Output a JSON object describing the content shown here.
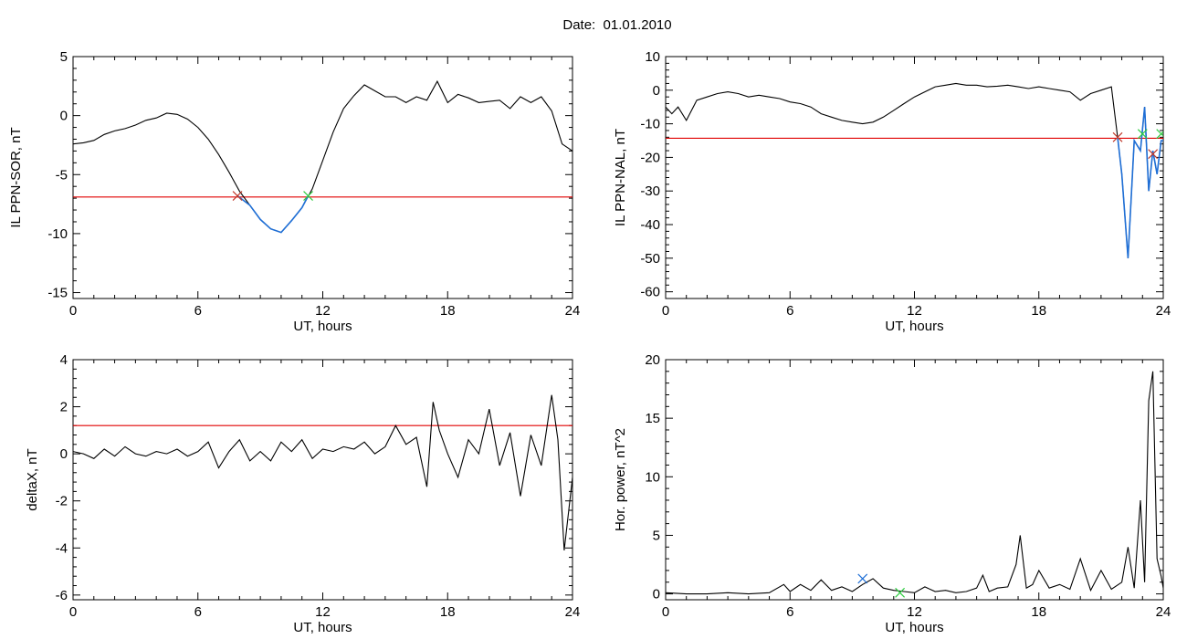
{
  "page_title": "Date:  01.01.2010",
  "colors": {
    "data": "#000000",
    "threshold": "#e00000",
    "segment": "#1f6fd6",
    "start_marker": "#c0392b",
    "end_marker": "#2ecc40",
    "peak_marker": "#1f6fd6"
  },
  "chart_data": [
    {
      "type": "line",
      "id": "sor",
      "title": "",
      "xlabel": "UT, hours",
      "ylabel": "IL PPN-SOR, nT",
      "xlim": [
        0,
        24
      ],
      "ylim": [
        -15.5,
        5
      ],
      "xticks": [
        0,
        6,
        12,
        18,
        24
      ],
      "yticks": [
        5,
        0,
        -5,
        -10,
        -15
      ],
      "grid": false,
      "threshold": -6.9,
      "series": [
        {
          "role": "data",
          "x": [
            0,
            0.5,
            1,
            1.5,
            2,
            2.5,
            3,
            3.5,
            4,
            4.5,
            5,
            5.5,
            6,
            6.5,
            7,
            7.5,
            8,
            8.5,
            9,
            9.5,
            10,
            10.5,
            11,
            11.5,
            12,
            12.5,
            13,
            13.5,
            14,
            14.5,
            15,
            15.5,
            16,
            16.5,
            17,
            17.5,
            18,
            18.5,
            19,
            19.5,
            20,
            20.5,
            21,
            21.5,
            22,
            22.5,
            23,
            23.5,
            24
          ],
          "y": [
            -2.4,
            -2.3,
            -2.1,
            -1.6,
            -1.3,
            -1.1,
            -0.8,
            -0.4,
            -0.2,
            0.2,
            0.1,
            -0.3,
            -1.0,
            -2.0,
            -3.3,
            -4.8,
            -6.4,
            -7.6,
            -8.8,
            -9.6,
            -9.9,
            -8.9,
            -7.8,
            -6.2,
            -3.8,
            -1.4,
            0.6,
            1.7,
            2.6,
            2.1,
            1.6,
            1.6,
            1.1,
            1.6,
            1.3,
            2.9,
            1.1,
            1.8,
            1.5,
            1.1,
            1.2,
            1.3,
            0.6,
            1.6,
            1.1,
            1.6,
            0.4,
            -2.4,
            -3.0
          ]
        },
        {
          "role": "segment",
          "x": [
            7.9,
            8.5,
            9,
            9.5,
            10,
            10.5,
            11,
            11.3
          ],
          "y": [
            -6.8,
            -7.6,
            -8.8,
            -9.6,
            -9.9,
            -8.9,
            -7.8,
            -6.8
          ]
        }
      ],
      "markers": [
        {
          "x": 7.9,
          "y": -6.8,
          "role": "start"
        },
        {
          "x": 11.3,
          "y": -6.8,
          "role": "end"
        }
      ]
    },
    {
      "type": "line",
      "id": "nal",
      "title": "",
      "xlabel": "UT, hours",
      "ylabel": "IL PPN-NAL, nT",
      "xlim": [
        0,
        24
      ],
      "ylim": [
        -62,
        10
      ],
      "xticks": [
        0,
        6,
        12,
        18,
        24
      ],
      "yticks": [
        10,
        0,
        -10,
        -20,
        -30,
        -40,
        -50,
        -60
      ],
      "grid": false,
      "threshold": -14.3,
      "series": [
        {
          "role": "data",
          "x": [
            0,
            0.3,
            0.6,
            1,
            1.5,
            2,
            2.5,
            3,
            3.5,
            4,
            4.5,
            5,
            5.5,
            6,
            6.5,
            7,
            7.5,
            8,
            8.5,
            9,
            9.5,
            10,
            10.5,
            11,
            11.5,
            12,
            12.5,
            13,
            13.5,
            14,
            14.5,
            15,
            15.5,
            16,
            16.5,
            17,
            17.5,
            18,
            18.5,
            19,
            19.5,
            20,
            20.5,
            21,
            21.5,
            21.8,
            22,
            22.3,
            22.6,
            22.9,
            23.1,
            23.3,
            23.5,
            23.7,
            23.9,
            24
          ],
          "y": [
            -5,
            -7,
            -5,
            -9,
            -3,
            -2,
            -1,
            -0.5,
            -1,
            -2,
            -1.5,
            -2,
            -2.5,
            -3.5,
            -4,
            -5,
            -7,
            -8,
            -9,
            -9.5,
            -10,
            -9.5,
            -8,
            -6,
            -4,
            -2,
            -0.5,
            1,
            1.5,
            2,
            1.5,
            1.5,
            1,
            1.2,
            1.5,
            1,
            0.5,
            1,
            0.5,
            0,
            -0.5,
            -3,
            -1,
            0,
            1,
            -14,
            -25,
            -50,
            -15,
            -18,
            -5,
            -30,
            -18,
            -25,
            -15,
            -15
          ]
        },
        {
          "role": "segment",
          "x": [
            21.8,
            22,
            22.3,
            22.6,
            22.9,
            23.1,
            23.3,
            23.5,
            23.7,
            23.9,
            24
          ],
          "y": [
            -14,
            -25,
            -50,
            -15,
            -18,
            -5,
            -30,
            -18,
            -25,
            -15,
            -15
          ]
        }
      ],
      "markers": [
        {
          "x": 21.8,
          "y": -14,
          "role": "start"
        },
        {
          "x": 23.0,
          "y": -13,
          "role": "end"
        },
        {
          "x": 23.5,
          "y": -19,
          "role": "start"
        },
        {
          "x": 23.9,
          "y": -13,
          "role": "end"
        }
      ]
    },
    {
      "type": "line",
      "id": "deltax",
      "title": "",
      "xlabel": "UT, hours",
      "ylabel": "deltaX, nT",
      "xlim": [
        0,
        24
      ],
      "ylim": [
        -6.2,
        4
      ],
      "xticks": [
        0,
        6,
        12,
        18,
        24
      ],
      "yticks": [
        4,
        2,
        0,
        -2,
        -4,
        -6
      ],
      "grid": false,
      "threshold": 1.2,
      "series": [
        {
          "role": "data",
          "x": [
            0,
            0.5,
            1,
            1.5,
            2,
            2.5,
            3,
            3.5,
            4,
            4.5,
            5,
            5.5,
            6,
            6.5,
            7,
            7.5,
            8,
            8.5,
            9,
            9.5,
            10,
            10.5,
            11,
            11.5,
            12,
            12.5,
            13,
            13.5,
            14,
            14.5,
            15,
            15.5,
            16,
            16.5,
            17,
            17.3,
            17.6,
            18,
            18.5,
            19,
            19.5,
            20,
            20.5,
            21,
            21.5,
            22,
            22.5,
            23,
            23.3,
            23.6,
            24
          ],
          "y": [
            0.1,
            0,
            -0.2,
            0.2,
            -0.1,
            0.3,
            0,
            -0.1,
            0.1,
            0,
            0.2,
            -0.1,
            0.1,
            0.5,
            -0.6,
            0.1,
            0.6,
            -0.3,
            0.1,
            -0.3,
            0.5,
            0.1,
            0.6,
            -0.2,
            0.2,
            0.1,
            0.3,
            0.2,
            0.5,
            0,
            0.3,
            1.2,
            0.4,
            0.7,
            -1.4,
            2.2,
            1,
            0,
            -1.0,
            0.6,
            0,
            1.9,
            -0.5,
            0.9,
            -1.8,
            0.8,
            -0.5,
            2.5,
            0.6,
            -4.1,
            -1.0
          ]
        }
      ],
      "markers": []
    },
    {
      "type": "line",
      "id": "power",
      "title": "",
      "xlabel": "UT, hours",
      "ylabel": "Hor. power, nT^2",
      "xlim": [
        0,
        24
      ],
      "ylim": [
        -0.5,
        20
      ],
      "xticks": [
        0,
        6,
        12,
        18,
        24
      ],
      "yticks": [
        20,
        15,
        10,
        5,
        0
      ],
      "grid": false,
      "threshold": null,
      "series": [
        {
          "role": "data",
          "x": [
            0,
            1,
            2,
            3,
            4,
            5,
            5.7,
            6,
            6.5,
            7,
            7.5,
            8,
            8.5,
            9,
            9.5,
            10,
            10.5,
            11,
            11.5,
            12,
            12.5,
            13,
            13.5,
            14,
            14.5,
            15,
            15.3,
            15.6,
            16,
            16.5,
            16.9,
            17.1,
            17.4,
            17.7,
            18,
            18.5,
            19,
            19.5,
            20,
            20.5,
            21,
            21.5,
            22,
            22.3,
            22.6,
            22.9,
            23.1,
            23.3,
            23.5,
            23.7,
            23.9,
            24
          ],
          "y": [
            0.1,
            0,
            0,
            0.1,
            0,
            0.1,
            0.8,
            0.2,
            0.8,
            0.3,
            1.2,
            0.3,
            0.6,
            0.2,
            0.8,
            1.3,
            0.5,
            0.3,
            0.2,
            0.1,
            0.6,
            0.2,
            0.3,
            0.1,
            0.2,
            0.5,
            1.6,
            0.2,
            0.5,
            0.6,
            2.5,
            5.0,
            0.5,
            0.8,
            2.0,
            0.5,
            0.8,
            0.4,
            3.0,
            0.3,
            2.0,
            0.4,
            1.0,
            4.0,
            0.5,
            8.0,
            1.0,
            16.5,
            19.0,
            3.0,
            1.5,
            0.5
          ]
        }
      ],
      "markers": [
        {
          "x": 9.5,
          "y": 1.3,
          "role": "peak"
        },
        {
          "x": 11.3,
          "y": 0.1,
          "role": "end"
        }
      ]
    }
  ]
}
